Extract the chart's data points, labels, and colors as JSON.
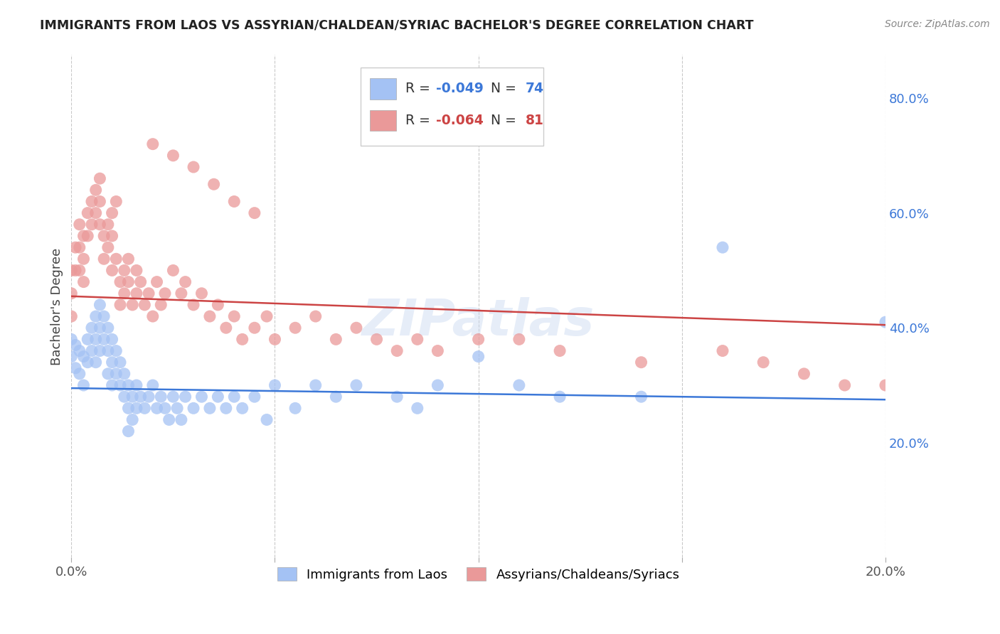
{
  "title": "IMMIGRANTS FROM LAOS VS ASSYRIAN/CHALDEAN/SYRIAC BACHELOR'S DEGREE CORRELATION CHART",
  "source": "Source: ZipAtlas.com",
  "ylabel": "Bachelor's Degree",
  "xlim": [
    0.0,
    0.2
  ],
  "ylim": [
    0.0,
    0.875
  ],
  "yticks": [
    0.2,
    0.4,
    0.6,
    0.8
  ],
  "ytick_labels": [
    "20.0%",
    "40.0%",
    "60.0%",
    "80.0%"
  ],
  "xticks": [
    0.0,
    0.05,
    0.1,
    0.15,
    0.2
  ],
  "xtick_labels": [
    "0.0%",
    "",
    "",
    "",
    "20.0%"
  ],
  "legend_r_blue": "-0.049",
  "legend_n_blue": "74",
  "legend_r_pink": "-0.064",
  "legend_n_pink": "81",
  "blue_color": "#a4c2f4",
  "pink_color": "#ea9999",
  "blue_line_color": "#3c78d8",
  "pink_line_color": "#cc4444",
  "legend_label_blue": "Immigrants from Laos",
  "legend_label_pink": "Assyrians/Chaldeans/Syriacs",
  "watermark": "ZIPatlas",
  "background_color": "#ffffff",
  "grid_color": "#bbbbbb",
  "title_color": "#222222",
  "right_tick_color": "#3c78d8",
  "blue_line_y0": 0.295,
  "blue_line_y1": 0.275,
  "pink_line_y0": 0.455,
  "pink_line_y1": 0.405,
  "blue_x": [
    0.0,
    0.0,
    0.001,
    0.001,
    0.002,
    0.002,
    0.003,
    0.003,
    0.004,
    0.004,
    0.005,
    0.005,
    0.006,
    0.006,
    0.006,
    0.007,
    0.007,
    0.007,
    0.008,
    0.008,
    0.009,
    0.009,
    0.009,
    0.01,
    0.01,
    0.01,
    0.011,
    0.011,
    0.012,
    0.012,
    0.013,
    0.013,
    0.014,
    0.014,
    0.014,
    0.015,
    0.015,
    0.016,
    0.016,
    0.017,
    0.018,
    0.019,
    0.02,
    0.021,
    0.022,
    0.023,
    0.024,
    0.025,
    0.026,
    0.027,
    0.028,
    0.03,
    0.032,
    0.034,
    0.036,
    0.038,
    0.04,
    0.042,
    0.045,
    0.048,
    0.05,
    0.055,
    0.06,
    0.065,
    0.07,
    0.08,
    0.085,
    0.09,
    0.1,
    0.11,
    0.12,
    0.14,
    0.16,
    0.2
  ],
  "blue_y": [
    0.38,
    0.35,
    0.37,
    0.33,
    0.36,
    0.32,
    0.35,
    0.3,
    0.38,
    0.34,
    0.4,
    0.36,
    0.42,
    0.38,
    0.34,
    0.44,
    0.4,
    0.36,
    0.42,
    0.38,
    0.4,
    0.36,
    0.32,
    0.38,
    0.34,
    0.3,
    0.36,
    0.32,
    0.34,
    0.3,
    0.32,
    0.28,
    0.3,
    0.26,
    0.22,
    0.28,
    0.24,
    0.3,
    0.26,
    0.28,
    0.26,
    0.28,
    0.3,
    0.26,
    0.28,
    0.26,
    0.24,
    0.28,
    0.26,
    0.24,
    0.28,
    0.26,
    0.28,
    0.26,
    0.28,
    0.26,
    0.28,
    0.26,
    0.28,
    0.24,
    0.3,
    0.26,
    0.3,
    0.28,
    0.3,
    0.28,
    0.26,
    0.3,
    0.35,
    0.3,
    0.28,
    0.28,
    0.54,
    0.41
  ],
  "pink_x": [
    0.0,
    0.0,
    0.0,
    0.001,
    0.001,
    0.002,
    0.002,
    0.002,
    0.003,
    0.003,
    0.003,
    0.004,
    0.004,
    0.005,
    0.005,
    0.006,
    0.006,
    0.007,
    0.007,
    0.007,
    0.008,
    0.008,
    0.009,
    0.009,
    0.01,
    0.01,
    0.01,
    0.011,
    0.011,
    0.012,
    0.012,
    0.013,
    0.013,
    0.014,
    0.014,
    0.015,
    0.016,
    0.016,
    0.017,
    0.018,
    0.019,
    0.02,
    0.021,
    0.022,
    0.023,
    0.025,
    0.027,
    0.028,
    0.03,
    0.032,
    0.034,
    0.036,
    0.038,
    0.04,
    0.042,
    0.045,
    0.048,
    0.05,
    0.055,
    0.06,
    0.065,
    0.07,
    0.075,
    0.08,
    0.085,
    0.09,
    0.1,
    0.11,
    0.12,
    0.14,
    0.16,
    0.17,
    0.18,
    0.19,
    0.2,
    0.02,
    0.025,
    0.03,
    0.035,
    0.04,
    0.045
  ],
  "pink_y": [
    0.5,
    0.46,
    0.42,
    0.54,
    0.5,
    0.58,
    0.54,
    0.5,
    0.56,
    0.52,
    0.48,
    0.6,
    0.56,
    0.62,
    0.58,
    0.64,
    0.6,
    0.66,
    0.62,
    0.58,
    0.56,
    0.52,
    0.58,
    0.54,
    0.5,
    0.6,
    0.56,
    0.52,
    0.62,
    0.48,
    0.44,
    0.5,
    0.46,
    0.52,
    0.48,
    0.44,
    0.5,
    0.46,
    0.48,
    0.44,
    0.46,
    0.42,
    0.48,
    0.44,
    0.46,
    0.5,
    0.46,
    0.48,
    0.44,
    0.46,
    0.42,
    0.44,
    0.4,
    0.42,
    0.38,
    0.4,
    0.42,
    0.38,
    0.4,
    0.42,
    0.38,
    0.4,
    0.38,
    0.36,
    0.38,
    0.36,
    0.38,
    0.38,
    0.36,
    0.34,
    0.36,
    0.34,
    0.32,
    0.3,
    0.3,
    0.72,
    0.7,
    0.68,
    0.65,
    0.62,
    0.6
  ]
}
